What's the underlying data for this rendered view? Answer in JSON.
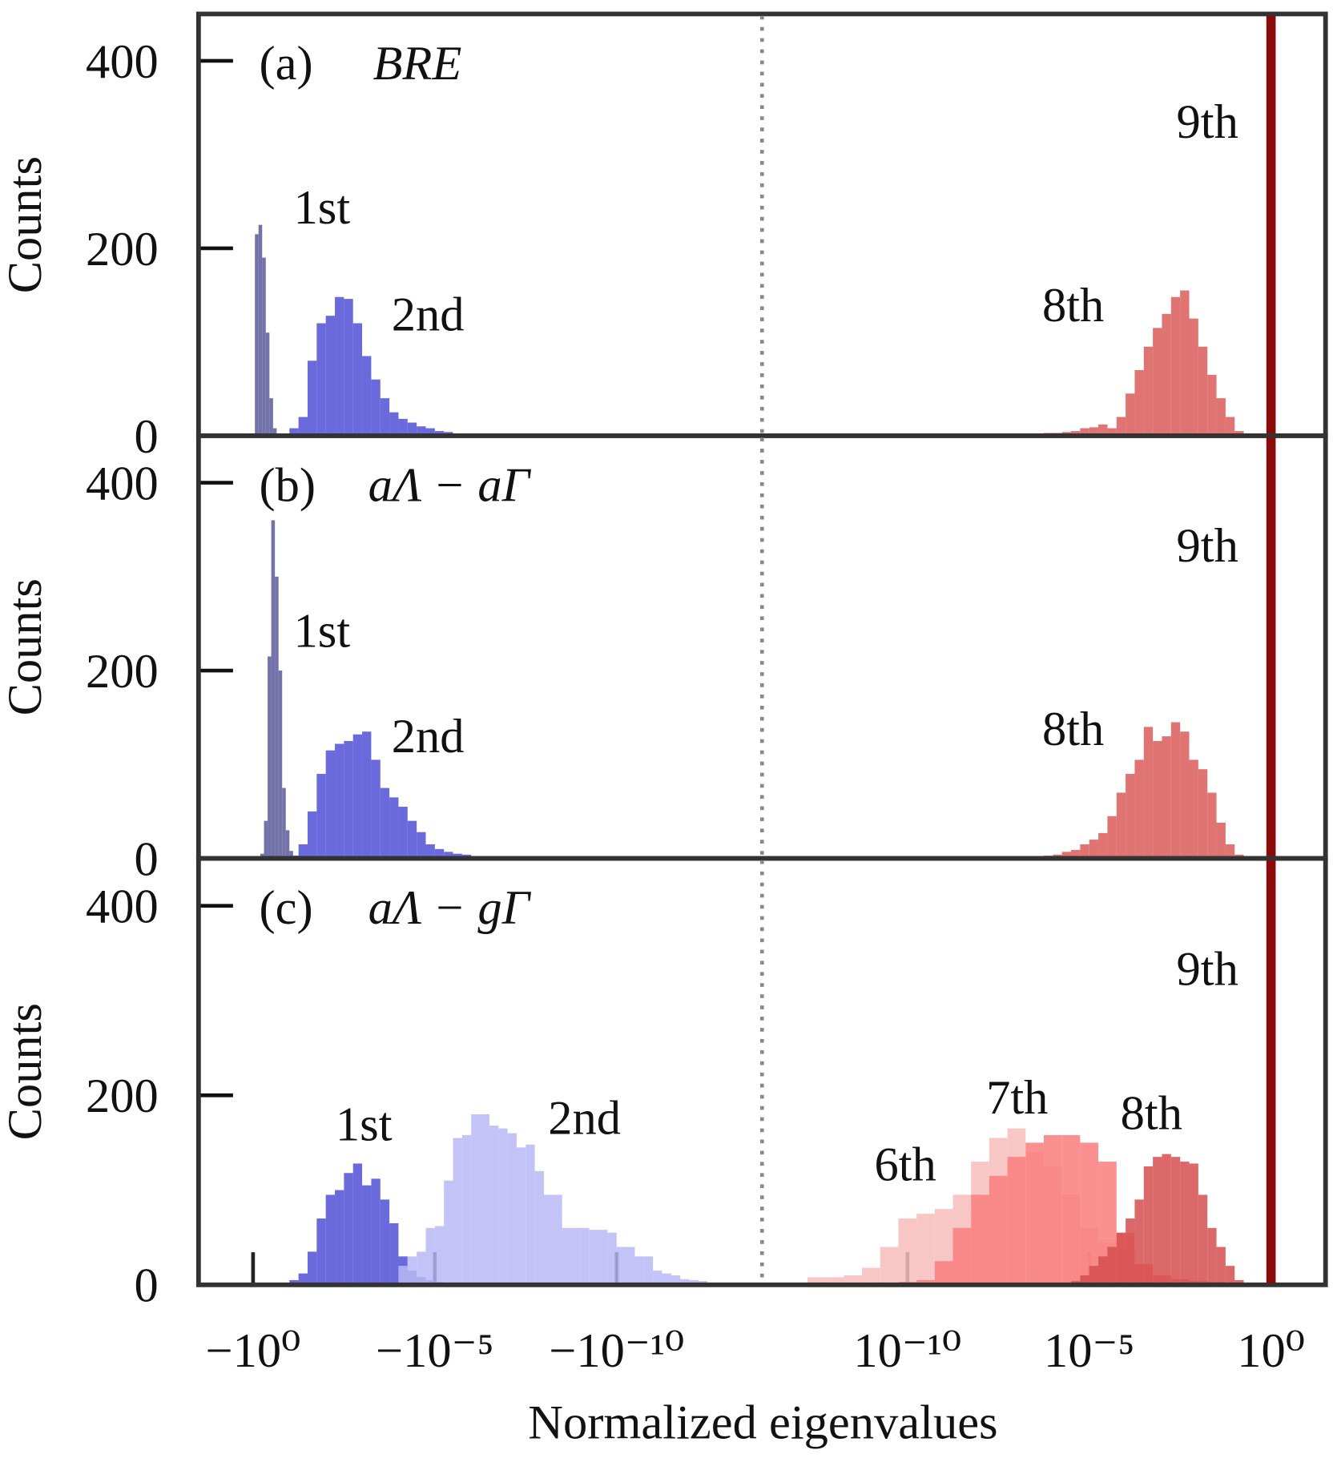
{
  "chart_data": [
    {
      "type": "histogram",
      "panel_label": "(a)",
      "subtitle": "BRE",
      "ylabel": "Counts",
      "xscale": "symlog",
      "linthresh": 1e-13,
      "xlim": [
        -31.6,
        31.6
      ],
      "ylim": [
        0,
        450
      ],
      "yticks": [
        0,
        200,
        400
      ],
      "series": [
        {
          "name": "1st",
          "color": "#5b5b9a",
          "bins": [
            -0.891,
            -0.708,
            -0.562,
            -0.447,
            -0.355,
            -0.282,
            -0.224
          ],
          "values": [
            215,
            225,
            190,
            110,
            40,
            8
          ]
        },
        {
          "name": "2nd",
          "color": "#5050d6",
          "bins": [
            -0.1,
            -0.05623,
            -0.03162,
            -0.01778,
            -0.01,
            -0.005623,
            -0.003162,
            -0.001778,
            -0.001,
            -0.0005623,
            -0.0003162,
            -0.0001778,
            -0.0001,
            -5.623e-05,
            -3.162e-05,
            -1.778e-05,
            -1e-05,
            -5.623e-06,
            -3.162e-06,
            -1.778e-06,
            -1e-06,
            -5.623e-07
          ],
          "values": [
            8,
            20,
            80,
            120,
            128,
            148,
            146,
            120,
            85,
            60,
            40,
            25,
            18,
            14,
            10,
            8,
            5,
            4,
            2,
            2,
            1
          ]
        },
        {
          "name": "8th",
          "color": "#d95c5b",
          "bins": [
            3.162e-07,
            5.623e-07,
            1e-06,
            1.778e-06,
            3.162e-06,
            5.623e-06,
            1e-05,
            1.778e-05,
            3.162e-05,
            5.623e-05,
            0.0001,
            0.0001778,
            0.0003162,
            0.0005623,
            0.001,
            0.001778,
            0.003162,
            0.005623,
            0.01,
            0.01778,
            0.03162,
            0.05623,
            0.1,
            0.1778
          ],
          "values": [
            2,
            3,
            3,
            4,
            5,
            8,
            9,
            12,
            8,
            20,
            45,
            70,
            95,
            115,
            130,
            148,
            155,
            125,
            95,
            65,
            40,
            20,
            5
          ]
        }
      ],
      "vlines": [
        {
          "x": 0,
          "color": "#888888",
          "style": "dotted"
        },
        {
          "name": "9th",
          "x": 1,
          "color": "#8b0a0a",
          "style": "solid"
        }
      ]
    },
    {
      "type": "histogram",
      "panel_label": "(b)",
      "subtitle": "aΛ − aΓ",
      "ylabel": "Counts",
      "xscale": "symlog",
      "linthresh": 1e-13,
      "xlim": [
        -31.6,
        31.6
      ],
      "ylim": [
        0,
        450
      ],
      "yticks": [
        0,
        200,
        400
      ],
      "series": [
        {
          "name": "1st",
          "color": "#5b5b9a",
          "bins": [
            -0.631,
            -0.501,
            -0.398,
            -0.316,
            -0.251,
            -0.1995,
            -0.1585,
            -0.1259,
            -0.1,
            -0.0794
          ],
          "values": [
            5,
            40,
            215,
            360,
            300,
            200,
            75,
            30,
            8
          ]
        },
        {
          "name": "2nd",
          "color": "#5050d6",
          "bins": [
            -0.1,
            -0.05623,
            -0.03162,
            -0.01778,
            -0.01,
            -0.005623,
            -0.003162,
            -0.001778,
            -0.001,
            -0.0005623,
            -0.0003162,
            -0.0001778,
            -0.0001,
            -5.623e-05,
            -3.162e-05,
            -1.778e-05,
            -1e-05,
            -5.623e-06,
            -3.162e-06,
            -1.778e-06,
            -1e-06,
            -5.623e-07,
            -3.162e-07,
            -1.778e-07,
            -1e-07
          ],
          "values": [
            3,
            15,
            50,
            90,
            115,
            122,
            125,
            132,
            135,
            105,
            75,
            65,
            55,
            40,
            28,
            15,
            10,
            7,
            5,
            4,
            2,
            2,
            1,
            1
          ]
        },
        {
          "name": "8th",
          "color": "#d95c5b",
          "bins": [
            3.162e-07,
            5.623e-07,
            1e-06,
            1.778e-06,
            3.162e-06,
            5.623e-06,
            1e-05,
            1.778e-05,
            3.162e-05,
            5.623e-05,
            0.0001,
            0.0001778,
            0.0003162,
            0.0005623,
            0.001,
            0.001778,
            0.003162,
            0.005623,
            0.01,
            0.01778,
            0.03162,
            0.05623,
            0.1,
            0.1778
          ],
          "values": [
            2,
            3,
            4,
            7,
            9,
            15,
            20,
            27,
            45,
            70,
            90,
            105,
            140,
            125,
            130,
            145,
            135,
            105,
            95,
            70,
            38,
            15,
            4
          ]
        }
      ],
      "vlines": [
        {
          "x": 0,
          "color": "#888888",
          "style": "dotted"
        },
        {
          "name": "9th",
          "x": 1,
          "color": "#8b0a0a",
          "style": "solid"
        }
      ]
    },
    {
      "type": "histogram",
      "panel_label": "(c)",
      "subtitle": "aΛ − gΓ",
      "ylabel": "Counts",
      "xlabel": "Normalized eigenvalues",
      "xscale": "symlog",
      "linthresh": 1e-13,
      "xlim": [
        -31.6,
        31.6
      ],
      "ylim": [
        0,
        450
      ],
      "yticks": [
        0,
        200,
        400
      ],
      "xticks": [
        {
          "value": -1,
          "label": "−10⁰"
        },
        {
          "value": -1e-05,
          "label": "−10⁻⁵"
        },
        {
          "value": -1e-10,
          "label": "−10⁻¹⁰"
        },
        {
          "value": 1e-10,
          "label": "10⁻¹⁰"
        },
        {
          "value": 1e-05,
          "label": "10⁻⁵"
        },
        {
          "value": 1,
          "label": "10⁰"
        }
      ],
      "series": [
        {
          "name": "1st",
          "color": "#5050d6",
          "bins": [
            -0.1,
            -0.05623,
            -0.03162,
            -0.01778,
            -0.01,
            -0.005623,
            -0.003162,
            -0.001778,
            -0.001,
            -0.0005623,
            -0.0003162,
            -0.0001778,
            -0.0001,
            -5.623e-05,
            -3.162e-05,
            -1.778e-05,
            -1e-05,
            -5.623e-06,
            -3.162e-06,
            -1.778e-06
          ],
          "values": [
            5,
            12,
            35,
            70,
            95,
            100,
            118,
            128,
            105,
            112,
            90,
            65,
            30,
            15,
            8,
            5,
            3,
            2,
            1
          ]
        },
        {
          "name": "2nd",
          "color": "#b8b8f6",
          "bins": [
            -0.0001,
            -5.623e-05,
            -3.162e-05,
            -1.778e-05,
            -1e-05,
            -5.623e-06,
            -3.162e-06,
            -1.778e-06,
            -1e-06,
            -5.623e-07,
            -3.162e-07,
            -1.778e-07,
            -1e-07,
            -5.623e-08,
            -3.162e-08,
            -1.778e-08,
            -1e-08,
            -5.623e-09,
            -3.162e-09,
            -1.778e-09,
            -1e-09,
            -5.623e-10,
            -3.162e-10,
            -1.778e-10,
            -1e-10,
            -5.623e-11,
            -3.162e-11,
            -1.778e-11,
            -1e-11,
            -5.623e-12,
            -3.162e-12,
            -1.778e-12,
            -1e-12,
            -5.623e-13,
            -3.162e-13
          ],
          "values": [
            20,
            30,
            35,
            60,
            62,
            110,
            155,
            158,
            180,
            180,
            168,
            165,
            160,
            145,
            148,
            120,
            95,
            95,
            60,
            60,
            60,
            58,
            58,
            55,
            40,
            40,
            30,
            30,
            15,
            12,
            10,
            6,
            5,
            4
          ]
        },
        {
          "name": "6th",
          "color": "#f8bcbc",
          "bins": [
            1.778e-13,
            5.623e-13,
            1.778e-12,
            5.623e-12,
            1.778e-11,
            5.623e-11,
            1.778e-10,
            5.623e-10,
            1.778e-09,
            5.623e-09,
            1.778e-08,
            5.623e-08,
            1.778e-07,
            5.623e-07,
            1.778e-06,
            5.623e-06,
            1.778e-05,
            5.623e-05,
            0.0001778,
            0.0005623,
            0.001778,
            0.005623,
            0.01778,
            0.05623,
            0.1778
          ],
          "values": [
            8,
            8,
            10,
            18,
            40,
            70,
            75,
            80,
            95,
            130,
            155,
            165,
            140,
            125,
            95,
            60,
            45,
            35,
            20,
            10,
            6,
            4,
            3,
            2
          ]
        },
        {
          "name": "7th",
          "color": "#f97c7c",
          "bins": [
            1.778e-13,
            5.623e-13,
            1.778e-12,
            5.623e-12,
            1.778e-11,
            5.623e-11,
            1.778e-10,
            5.623e-10,
            1.778e-09,
            5.623e-09,
            1.778e-08,
            5.623e-08,
            1.778e-07,
            5.623e-07,
            1.778e-06,
            5.623e-06,
            1.778e-05,
            5.623e-05,
            0.0001778,
            0.0005623,
            0.001778,
            0.005623,
            0.01778,
            0.05623,
            0.1778
          ],
          "values": [
            0,
            0,
            0,
            1,
            2,
            3,
            5,
            25,
            60,
            95,
            115,
            135,
            150,
            158,
            158,
            150,
            130,
            55,
            22,
            10,
            6,
            4,
            3,
            2
          ]
        },
        {
          "name": "8th",
          "color": "#d64f4f",
          "bins": [
            3.162e-07,
            5.623e-07,
            1e-06,
            1.778e-06,
            3.162e-06,
            5.623e-06,
            1e-05,
            1.778e-05,
            3.162e-05,
            5.623e-05,
            0.0001,
            0.0001778,
            0.0003162,
            0.0005623,
            0.001,
            0.001778,
            0.003162,
            0.005623,
            0.01,
            0.01778,
            0.03162,
            0.05623,
            0.1,
            0.1778
          ],
          "values": [
            1,
            1,
            2,
            2,
            4,
            10,
            20,
            30,
            40,
            55,
            70,
            90,
            125,
            135,
            138,
            135,
            130,
            128,
            95,
            60,
            40,
            20,
            5
          ]
        }
      ],
      "vlines": [
        {
          "x": 0,
          "color": "#888888",
          "style": "dotted"
        },
        {
          "name": "9th",
          "x": 1,
          "color": "#8b0a0a",
          "style": "solid"
        }
      ]
    }
  ]
}
